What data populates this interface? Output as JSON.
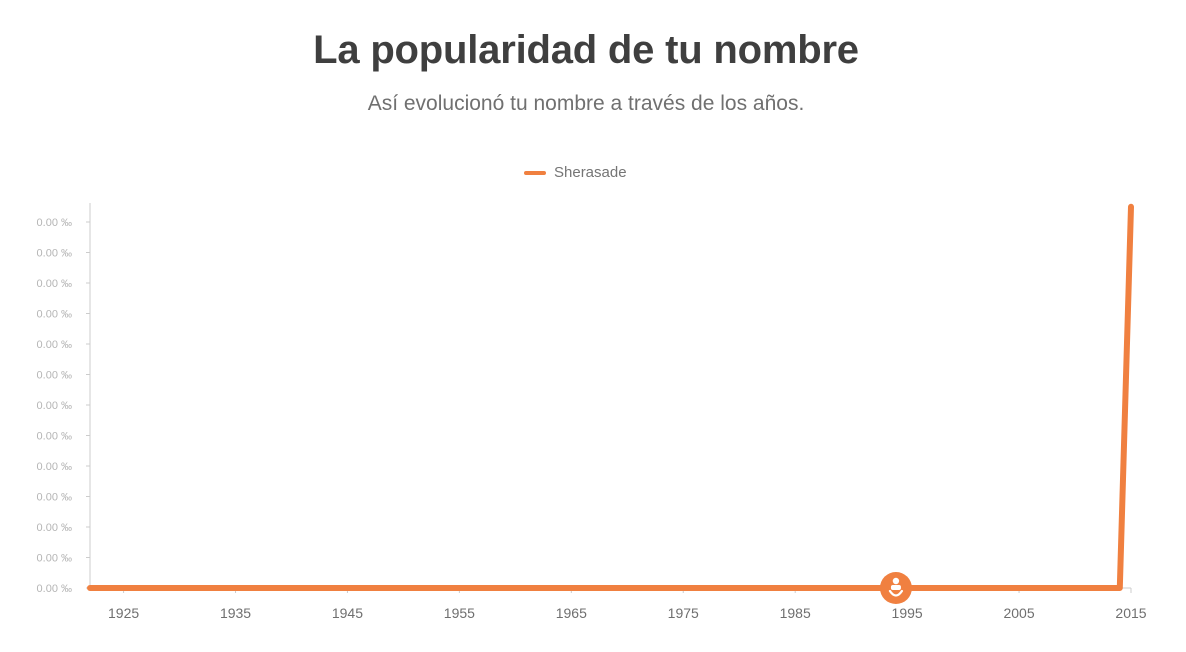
{
  "header": {
    "title": "La popularidad de tu nombre",
    "subtitle": "Así evolucionó tu nombre a través de los años."
  },
  "colors": {
    "series": "#f08040",
    "axis": "#cccccc"
  },
  "marker": {
    "year": 1994,
    "icon": "baby-icon"
  },
  "chart_data": {
    "type": "line",
    "legend_position": "top-center",
    "grid": false,
    "xlim": [
      1922,
      2015
    ],
    "ylim": [
      0,
      12
    ],
    "x_ticks": [
      "1925",
      "1935",
      "1945",
      "1955",
      "1965",
      "1975",
      "1985",
      "1995",
      "2005",
      "2015"
    ],
    "y_ticks": [
      "0.00 ‰",
      "0.00 ‰",
      "0.00 ‰",
      "0.00 ‰",
      "0.00 ‰",
      "0.00 ‰",
      "0.00 ‰",
      "0.00 ‰",
      "0.00 ‰",
      "0.00 ‰",
      "0.00 ‰",
      "0.00 ‰",
      "0.00 ‰"
    ],
    "series": [
      {
        "name": "Sherasade",
        "x": [
          1922,
          2014,
          2015
        ],
        "y": [
          0,
          0,
          12.5
        ]
      }
    ]
  }
}
